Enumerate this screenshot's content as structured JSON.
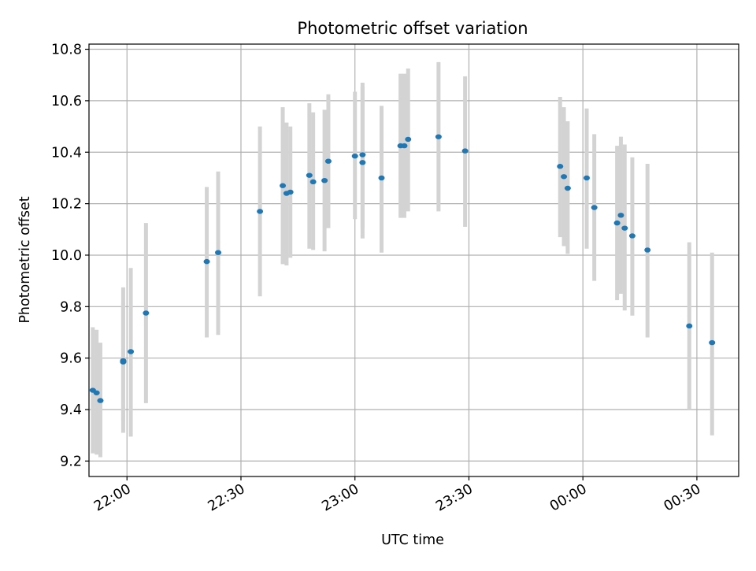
{
  "chart_data": {
    "type": "scatter",
    "title": "Photometric offset variation",
    "xlabel": "UTC time",
    "ylabel": "Photometric offset",
    "x_axis_type": "time",
    "xlim": [
      "21:50",
      "00:41"
    ],
    "ylim": [
      9.14,
      10.82
    ],
    "xticks": [
      "22:00",
      "22:30",
      "23:00",
      "23:30",
      "00:00",
      "00:30"
    ],
    "yticks": [
      9.2,
      9.4,
      9.6,
      9.8,
      10.0,
      10.2,
      10.4,
      10.6,
      10.8
    ],
    "ytick_labels": [
      "9.2",
      "9.4",
      "9.6",
      "9.8",
      "10.0",
      "10.2",
      "10.4",
      "10.6",
      "10.8"
    ],
    "grid": true,
    "legend": "none",
    "point_color": "#1f77b4",
    "errorbar_color": "#d3d3d3",
    "points": [
      {
        "x": "21:51",
        "y": 9.475,
        "ylow": 9.23,
        "yhigh": 9.72
      },
      {
        "x": "21:52",
        "y": 9.465,
        "ylow": 9.225,
        "yhigh": 9.71
      },
      {
        "x": "21:53",
        "y": 9.435,
        "ylow": 9.215,
        "yhigh": 9.66
      },
      {
        "x": "21:59",
        "y": 9.585,
        "ylow": 9.355,
        "yhigh": 9.815
      },
      {
        "x": "21:59",
        "y": 9.59,
        "ylow": 9.31,
        "yhigh": 9.875
      },
      {
        "x": "22:01",
        "y": 9.625,
        "ylow": 9.295,
        "yhigh": 9.95
      },
      {
        "x": "22:05",
        "y": 9.775,
        "ylow": 9.425,
        "yhigh": 10.125
      },
      {
        "x": "22:21",
        "y": 9.975,
        "ylow": 9.68,
        "yhigh": 10.265
      },
      {
        "x": "22:24",
        "y": 10.01,
        "ylow": 9.69,
        "yhigh": 10.325
      },
      {
        "x": "22:35",
        "y": 10.17,
        "ylow": 9.84,
        "yhigh": 10.5
      },
      {
        "x": "22:41",
        "y": 10.27,
        "ylow": 9.965,
        "yhigh": 10.575
      },
      {
        "x": "22:42",
        "y": 10.24,
        "ylow": 9.96,
        "yhigh": 10.515
      },
      {
        "x": "22:43",
        "y": 10.245,
        "ylow": 9.99,
        "yhigh": 10.5
      },
      {
        "x": "22:48",
        "y": 10.31,
        "ylow": 10.025,
        "yhigh": 10.59
      },
      {
        "x": "22:49",
        "y": 10.285,
        "ylow": 10.02,
        "yhigh": 10.555
      },
      {
        "x": "22:52",
        "y": 10.29,
        "ylow": 10.015,
        "yhigh": 10.565
      },
      {
        "x": "22:53",
        "y": 10.365,
        "ylow": 10.105,
        "yhigh": 10.625
      },
      {
        "x": "23:00",
        "y": 10.385,
        "ylow": 10.14,
        "yhigh": 10.635
      },
      {
        "x": "23:02",
        "y": 10.39,
        "ylow": 10.105,
        "yhigh": 10.67
      },
      {
        "x": "23:02",
        "y": 10.36,
        "ylow": 10.065,
        "yhigh": 10.655
      },
      {
        "x": "23:07",
        "y": 10.3,
        "ylow": 10.01,
        "yhigh": 10.58
      },
      {
        "x": "23:12",
        "y": 10.425,
        "ylow": 10.145,
        "yhigh": 10.705
      },
      {
        "x": "23:13",
        "y": 10.425,
        "ylow": 10.145,
        "yhigh": 10.705
      },
      {
        "x": "23:14",
        "y": 10.45,
        "ylow": 10.17,
        "yhigh": 10.725
      },
      {
        "x": "23:22",
        "y": 10.46,
        "ylow": 10.17,
        "yhigh": 10.75
      },
      {
        "x": "23:29",
        "y": 10.405,
        "ylow": 10.11,
        "yhigh": 10.695
      },
      {
        "x": "23:54",
        "y": 10.345,
        "ylow": 10.07,
        "yhigh": 10.615
      },
      {
        "x": "23:55",
        "y": 10.305,
        "ylow": 10.035,
        "yhigh": 10.575
      },
      {
        "x": "23:56",
        "y": 10.26,
        "ylow": 10.005,
        "yhigh": 10.52
      },
      {
        "x": "00:01",
        "y": 10.3,
        "ylow": 10.025,
        "yhigh": 10.57
      },
      {
        "x": "00:03",
        "y": 10.185,
        "ylow": 9.9,
        "yhigh": 10.47
      },
      {
        "x": "00:09",
        "y": 10.125,
        "ylow": 9.825,
        "yhigh": 10.425
      },
      {
        "x": "00:10",
        "y": 10.155,
        "ylow": 9.85,
        "yhigh": 10.46
      },
      {
        "x": "00:11",
        "y": 10.105,
        "ylow": 9.785,
        "yhigh": 10.43
      },
      {
        "x": "00:13",
        "y": 10.075,
        "ylow": 9.765,
        "yhigh": 10.38
      },
      {
        "x": "00:17",
        "y": 10.02,
        "ylow": 9.68,
        "yhigh": 10.355
      },
      {
        "x": "00:28",
        "y": 9.725,
        "ylow": 9.4,
        "yhigh": 10.05
      },
      {
        "x": "00:34",
        "y": 9.66,
        "ylow": 9.3,
        "yhigh": 10.01
      }
    ]
  }
}
